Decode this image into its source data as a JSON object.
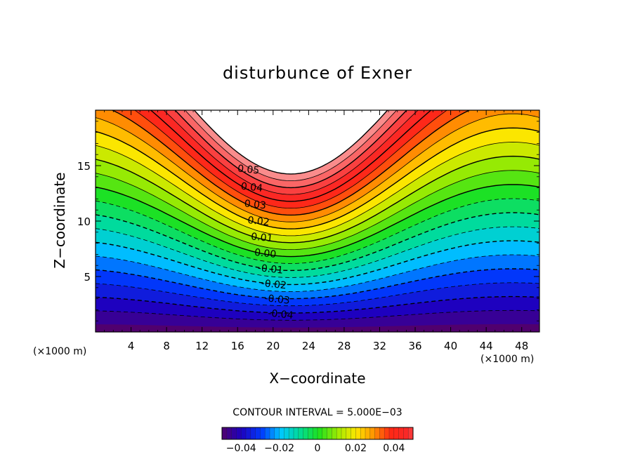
{
  "chart_data": {
    "type": "contour",
    "title": "disturbunce of Exner",
    "xlabel": "X−coordinate",
    "ylabel": "Z−coordinate",
    "x_unit_label": "(×1000 m)",
    "x_unit_label_right": "(×1000 m)",
    "xlim": [
      0,
      50
    ],
    "ylim": [
      0,
      20
    ],
    "x_ticks": [
      4,
      8,
      12,
      16,
      20,
      24,
      28,
      32,
      36,
      40,
      44,
      48
    ],
    "y_ticks": [
      5,
      10,
      15
    ],
    "x_tick_labels": [
      "4",
      "8",
      "12",
      "16",
      "20",
      "24",
      "28",
      "32",
      "36",
      "40",
      "44",
      "48"
    ],
    "y_tick_labels": [
      "5",
      "10",
      "15"
    ],
    "contour_interval_text": "CONTOUR INTERVAL = 5.000E−03",
    "contour_interval": 0.005,
    "level_range": [
      -0.05,
      0.06
    ],
    "shape": {
      "type": "wave",
      "mean_height": 4.2,
      "amplitude": 1.3,
      "crest_x": 47,
      "wavelength": 50
    },
    "contour_labels": [
      {
        "text": "0.05",
        "value": 0.05
      },
      {
        "text": "0.04",
        "value": 0.04
      },
      {
        "text": "0.03",
        "value": 0.03
      },
      {
        "text": "0.02",
        "value": 0.02
      },
      {
        "text": "0.01",
        "value": 0.01
      },
      {
        "text": "0.00",
        "value": 0.0
      },
      {
        "text": "-0.01",
        "value": -0.01
      },
      {
        "text": "-0.02",
        "value": -0.02
      },
      {
        "text": "-0.03",
        "value": -0.03
      },
      {
        "text": "-0.04",
        "value": -0.04
      }
    ],
    "colorbar": {
      "range": [
        -0.05,
        0.05
      ],
      "ticks": [
        -0.04,
        -0.02,
        0,
        0.02,
        0.04
      ],
      "tick_labels": [
        "−0.04",
        "−0.02",
        "0",
        "0.02",
        "0.04"
      ]
    },
    "grid": false
  }
}
